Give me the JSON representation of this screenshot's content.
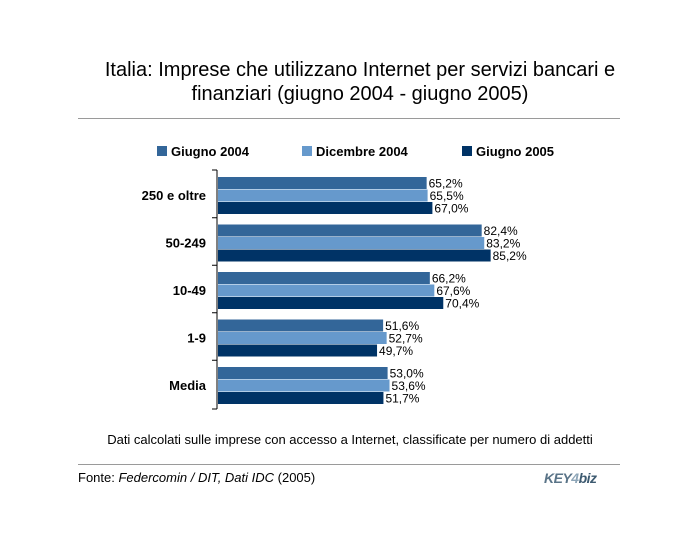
{
  "title_line1": "Italia: Imprese che utilizzano Internet per servizi bancari e",
  "title_line2": "finanziari (giugno 2004 - giugno 2005)",
  "note": "Dati calcolati sulle imprese con accesso a Internet, classificate per numero di addetti",
  "source": {
    "prefix": "Fonte: ",
    "italic": "Federcomin / DIT, Dati IDC",
    "suffix": " (2005)"
  },
  "logo": {
    "key": "KEY",
    "num": "4",
    "biz": "biz"
  },
  "colors": {
    "Giugno 2004": "#336699",
    "Dicembre 2004": "#6699cc",
    "Giugno 2005": "#003366"
  },
  "chart_data": {
    "type": "bar",
    "orientation": "horizontal",
    "categories": [
      "250 e oltre",
      "50-249",
      "10-49",
      "1-9",
      "Media"
    ],
    "series": [
      {
        "name": "Giugno 2004",
        "values": [
          65.2,
          82.4,
          66.2,
          51.6,
          53.0
        ],
        "labels": [
          "65,2%",
          "82,4%",
          "66,2%",
          "51,6%",
          "53,0%"
        ]
      },
      {
        "name": "Dicembre 2004",
        "values": [
          65.5,
          83.2,
          67.6,
          52.7,
          53.6
        ],
        "labels": [
          "65,5%",
          "83,2%",
          "67,6%",
          "52,7%",
          "53,6%"
        ]
      },
      {
        "name": "Giugno 2005",
        "values": [
          67.0,
          85.2,
          70.4,
          49.7,
          51.7
        ],
        "labels": [
          "67,0%",
          "85,2%",
          "70,4%",
          "49,7%",
          "51,7%"
        ]
      }
    ],
    "xlim": [
      0,
      100
    ],
    "legend": "top",
    "grid": false
  }
}
